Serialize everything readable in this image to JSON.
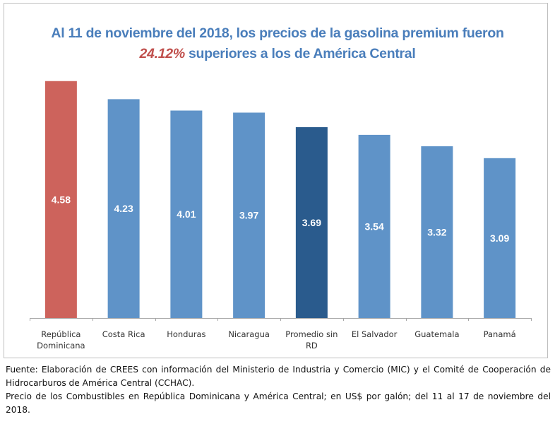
{
  "title": {
    "line1": "Al 11 de noviembre del 2018, los precios de la gasolina premium fueron",
    "highlight": "24.12%",
    "line2_rest": " superiores a los de América Central"
  },
  "colors": {
    "title": "#4a7ebb",
    "highlight": "#c0504d",
    "bar_default": "#5f93c8",
    "bar_rd": "#cd635c",
    "bar_average": "#2a5b8d",
    "axis": "#a6a6a6"
  },
  "chart_data": {
    "type": "bar",
    "title": "Al 11 de noviembre del 2018, los precios de la gasolina premium fueron 24.12% superiores a los de América Central",
    "xlabel": "",
    "ylabel": "",
    "ylim": [
      0,
      4.58
    ],
    "grid": false,
    "legend": "none",
    "categories": [
      [
        "República",
        "Dominicana"
      ],
      [
        "Costa Rica"
      ],
      [
        "Honduras"
      ],
      [
        "Nicaragua"
      ],
      [
        "Promedio sin",
        "RD"
      ],
      [
        "El Salvador"
      ],
      [
        "Guatemala"
      ],
      [
        "Panamá"
      ]
    ],
    "values": [
      4.58,
      4.23,
      4.01,
      3.97,
      3.69,
      3.54,
      3.32,
      3.09
    ],
    "data_labels": [
      "4.58",
      "4.23",
      "4.01",
      "3.97",
      "3.69",
      "3.54",
      "3.32",
      "3.09"
    ],
    "bar_color_keys": [
      "bar_rd",
      "bar_default",
      "bar_default",
      "bar_default",
      "bar_average",
      "bar_default",
      "bar_default",
      "bar_default"
    ]
  },
  "footer": {
    "source": "Fuente: Elaboración de CREES con información del Ministerio de Industria y Comercio (MIC) y el Comité de Cooperación de Hidrocarburos de América Central (CCHAC).",
    "note": "Precio de los Combustibles en República Dominicana y América Central; en US$ por galón; del  11 al 17 de noviembre del 2018."
  }
}
